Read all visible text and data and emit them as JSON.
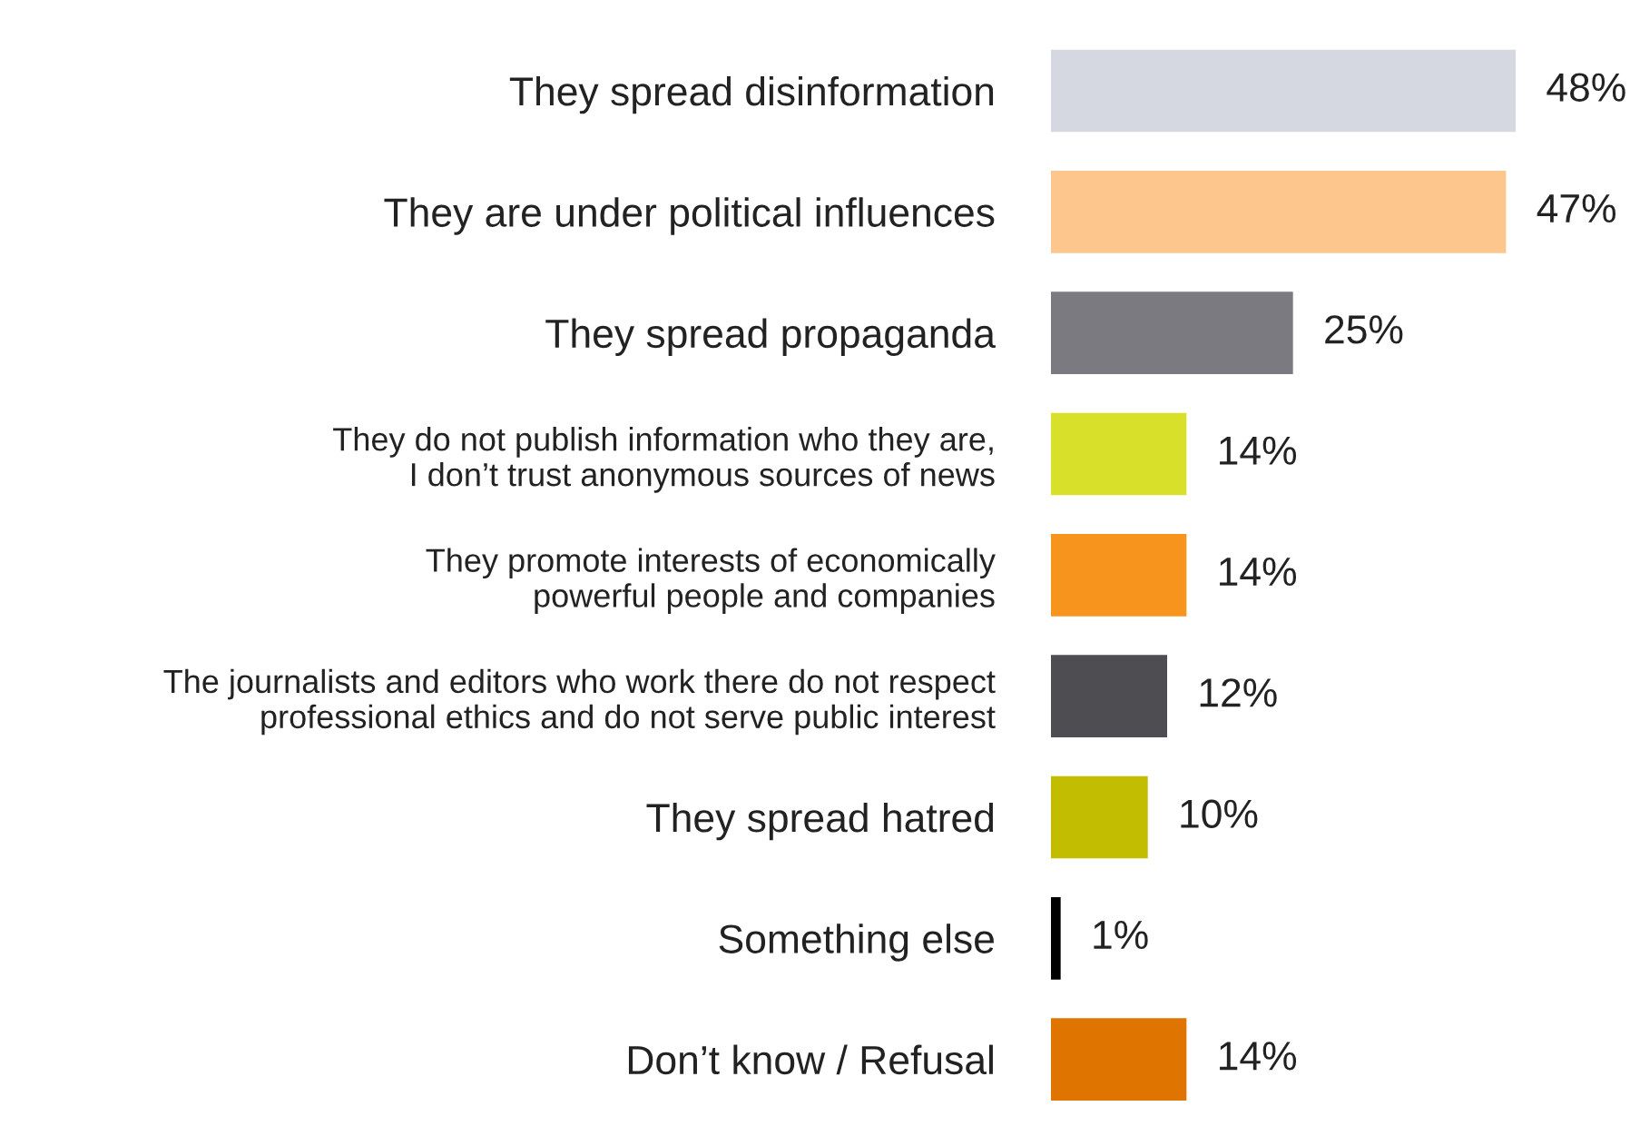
{
  "chart_data": {
    "type": "bar",
    "orientation": "horizontal",
    "value_labels": [
      "48%",
      "47%",
      "25%",
      "14%",
      "14%",
      "12%",
      "10%",
      "1%",
      "14%"
    ],
    "categories": [
      "They spread disinformation",
      "They are under political influences",
      "They spread propaganda",
      "They do not publish information who they are,\nI don’t trust anonymous sources of news",
      "They promote interests of economically\npowerful people and companies",
      "The journalists and editors who work there do not respect\nprofessional ethics and do not serve public interest",
      "They spread hatred",
      "Something else",
      "Don’t know / Refusal"
    ],
    "values": [
      48,
      47,
      25,
      14,
      14,
      12,
      10,
      1,
      14
    ],
    "colors": [
      "#d5d8e0",
      "#fdc68c",
      "#7a7a80",
      "#d9e02a",
      "#f7941d",
      "#4d4d52",
      "#c2bd00",
      "#000000",
      "#e07400"
    ]
  }
}
